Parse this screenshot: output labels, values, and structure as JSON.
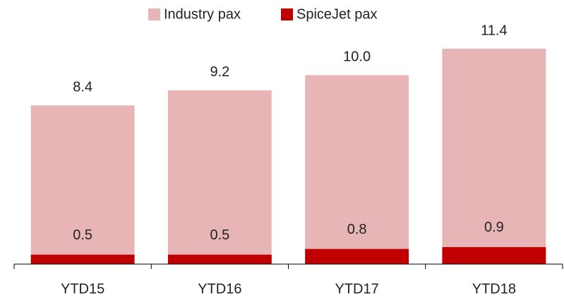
{
  "chart_data": {
    "type": "bar",
    "barmode": "overlay",
    "categories": [
      "YTD15",
      "YTD16",
      "YTD17",
      "YTD18"
    ],
    "series": [
      {
        "name": "Industry pax",
        "color": "#e8b5b6",
        "values": [
          8.4,
          9.2,
          10.0,
          11.4
        ],
        "value_labels": [
          "8.4",
          "9.2",
          "10.0",
          "11.4"
        ]
      },
      {
        "name": "SpiceJet pax",
        "color": "#c00000",
        "values": [
          0.5,
          0.5,
          0.8,
          0.9
        ],
        "value_labels": [
          "0.5",
          "0.5",
          "0.8",
          "0.9"
        ]
      }
    ],
    "legend": "top"
  }
}
